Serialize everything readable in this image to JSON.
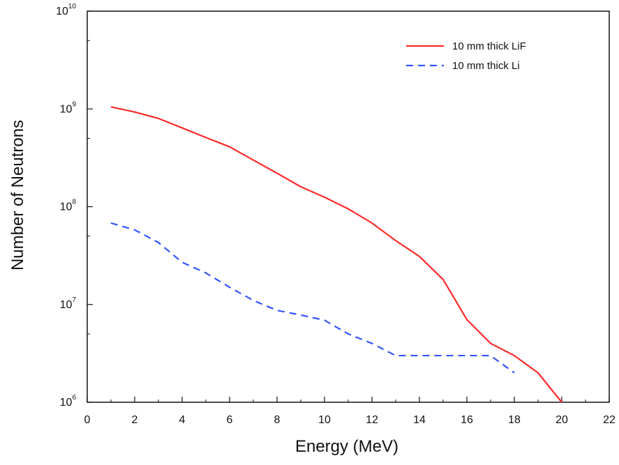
{
  "chart_data": {
    "type": "line",
    "title": "",
    "xlabel": "Energy (MeV)",
    "ylabel": "Number of Neutrons",
    "xlim": [
      0,
      22
    ],
    "ylim": [
      1000000,
      10000000000
    ],
    "y_scale": "log",
    "grid": false,
    "legend_position": "top-right",
    "x_ticks": [
      "0",
      "2",
      "4",
      "6",
      "8",
      "10",
      "12",
      "14",
      "16",
      "18",
      "20",
      "22"
    ],
    "y_ticks": [
      {
        "base": "10",
        "exp": "6"
      },
      {
        "base": "10",
        "exp": "7"
      },
      {
        "base": "10",
        "exp": "8"
      },
      {
        "base": "10",
        "exp": "9"
      },
      {
        "base": "10",
        "exp": "10"
      }
    ],
    "series": [
      {
        "name": "10 mm thick LiF",
        "color": "#ff2a2a",
        "line_style": "solid",
        "x": [
          1,
          2,
          3,
          4,
          5,
          6,
          7,
          8,
          9,
          10,
          11,
          12,
          13,
          14,
          15,
          16,
          17,
          18,
          19,
          20
        ],
        "y": [
          1050000000,
          930000000,
          800000000,
          640000000,
          510000000,
          410000000,
          300000000,
          220000000,
          160000000,
          125000000,
          95000000,
          68000000,
          45000000,
          31000000,
          18000000,
          7000000,
          4000000,
          3000000,
          2000000,
          1000000
        ]
      },
      {
        "name": "10 mm thick Li",
        "color": "#3355ff",
        "line_style": "dashed",
        "x": [
          1,
          2,
          3,
          4,
          5,
          6,
          7,
          8,
          9,
          10,
          11,
          12,
          13,
          14,
          15,
          16,
          17,
          18
        ],
        "y": [
          68000000,
          58000000,
          43000000,
          27000000,
          21000000,
          15000000,
          11000000,
          8700000,
          7800000,
          6900000,
          5000000,
          4000000,
          3000000,
          3000000,
          3000000,
          3000000,
          3000000,
          2000000
        ]
      }
    ]
  }
}
